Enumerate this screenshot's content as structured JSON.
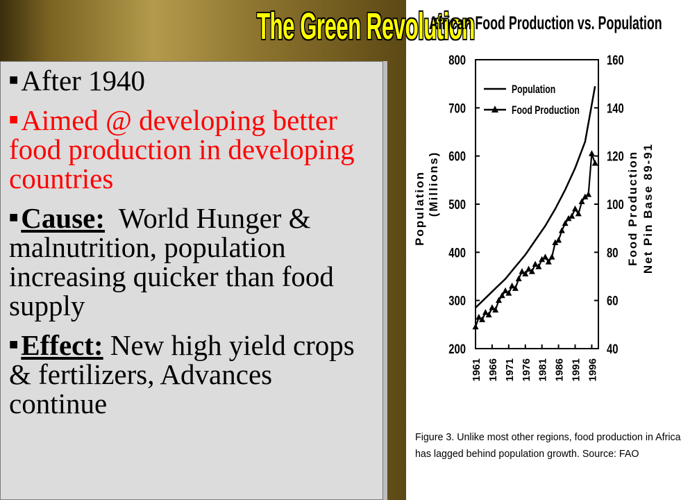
{
  "slide": {
    "title": "The Green Revolution",
    "bullets": [
      {
        "text": "After 1940"
      },
      {
        "text": "Aimed @ developing better food production in developing countries"
      },
      {
        "label": "Cause:",
        "text": "  World Hunger & malnutrition, population increasing quicker than food supply"
      },
      {
        "label": "Effect:",
        "text": " New high yield crops & fertilizers, Advances continue"
      }
    ],
    "colors": {
      "title": "#ffff00",
      "highlight_text": "#ff0000",
      "panel": "#dcdcdc"
    }
  },
  "chart_data": {
    "type": "line",
    "title": "African Food Production vs. Population",
    "caption": [
      "Figure 3.  Unlike most other regions, food production in Africa",
      "has lagged behind population growth.  Source: FAO"
    ],
    "x_ticks": [
      "1961",
      "1966",
      "1971",
      "1976",
      "1981",
      "1986",
      "1991",
      "1996"
    ],
    "y_left": {
      "label": [
        "Population",
        "(Millions)"
      ],
      "ticks": [
        200,
        300,
        400,
        500,
        600,
        700,
        800
      ],
      "range": [
        200,
        800
      ]
    },
    "y_right": {
      "label": [
        "Food Production",
        "Net Pin Base 89-91"
      ],
      "ticks": [
        40,
        60,
        80,
        100,
        120,
        140,
        160
      ],
      "range": [
        40,
        160
      ]
    },
    "xlim": [
      1961,
      1998
    ],
    "grid": false,
    "legend": "top-left",
    "series": [
      {
        "name": "Population",
        "axis": "left",
        "marker": "none",
        "x": [
          1961,
          1964,
          1967,
          1970,
          1973,
          1976,
          1979,
          1982,
          1985,
          1988,
          1991,
          1994,
          1997
        ],
        "values": [
          285,
          305,
          325,
          345,
          370,
          395,
          425,
          455,
          490,
          530,
          575,
          630,
          745
        ]
      },
      {
        "name": "Food Production",
        "axis": "right",
        "marker": "triangle",
        "x": [
          1961,
          1962,
          1963,
          1964,
          1965,
          1966,
          1967,
          1968,
          1969,
          1970,
          1971,
          1972,
          1973,
          1974,
          1975,
          1976,
          1977,
          1978,
          1979,
          1980,
          1981,
          1982,
          1983,
          1984,
          1985,
          1986,
          1987,
          1988,
          1989,
          1990,
          1991,
          1992,
          1993,
          1994,
          1995,
          1996,
          1997
        ],
        "values": [
          49,
          53,
          52,
          55,
          54,
          57,
          56,
          60,
          62,
          64,
          63,
          66,
          65,
          69,
          72,
          71,
          73,
          72,
          75,
          74,
          77,
          78,
          76,
          78,
          84,
          85,
          89,
          92,
          94,
          95,
          98,
          96,
          101,
          103,
          104,
          121,
          117
        ]
      }
    ]
  }
}
